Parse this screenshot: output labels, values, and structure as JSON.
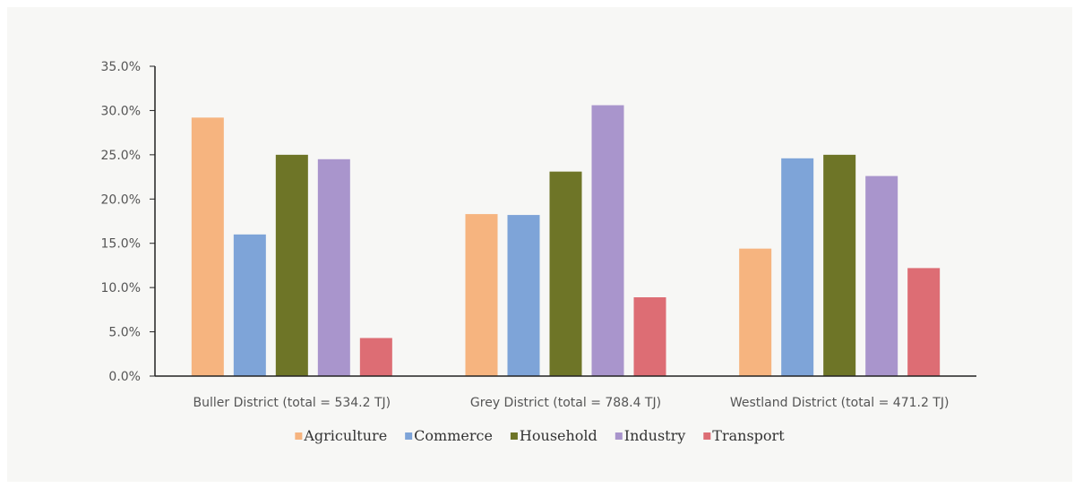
{
  "chart_data": {
    "type": "bar",
    "categories": [
      "Buller District (total = 534.2 TJ)",
      "Grey District (total = 788.4 TJ)",
      "Westland District (total = 471.2 TJ)"
    ],
    "series": [
      {
        "name": "Agriculture",
        "color": "#f6b47f",
        "values": [
          29.2,
          18.3,
          14.4
        ]
      },
      {
        "name": "Commerce",
        "color": "#7ea4d8",
        "values": [
          16.0,
          18.2,
          24.6
        ]
      },
      {
        "name": "Household",
        "color": "#6e7527",
        "values": [
          25.0,
          23.1,
          25.0
        ]
      },
      {
        "name": "Industry",
        "color": "#a995cc",
        "values": [
          24.5,
          30.6,
          22.6
        ]
      },
      {
        "name": "Transport",
        "color": "#dd6d74",
        "values": [
          4.3,
          8.9,
          12.2
        ]
      }
    ],
    "ylim": [
      0,
      35
    ],
    "yticks": [
      "0.0%",
      "5.0%",
      "10.0%",
      "15.0%",
      "20.0%",
      "25.0%",
      "30.0%",
      "35.0%"
    ],
    "grid": false,
    "legend_position": "bottom",
    "title": "",
    "xlabel": "",
    "ylabel": ""
  }
}
